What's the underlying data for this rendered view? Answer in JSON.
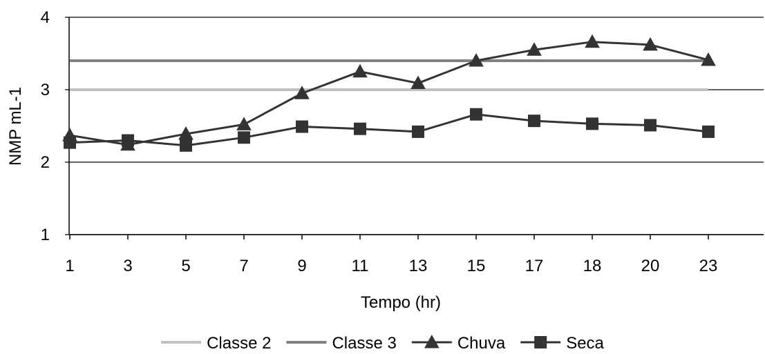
{
  "chart_data": {
    "type": "line",
    "title": "",
    "xlabel": "Tempo (hr)",
    "ylabel": "NMP mL-1",
    "ylim": [
      1,
      4
    ],
    "yticks": [
      "1",
      "2",
      "3",
      "4"
    ],
    "categories": [
      "1",
      "3",
      "5",
      "7",
      "9",
      "11",
      "13",
      "15",
      "17",
      "18",
      "20",
      "23"
    ],
    "grid": "horizontal",
    "legend_position": "bottom",
    "series": [
      {
        "name": "Classe 2",
        "color": "#c0c0c0",
        "marker": "none",
        "values": [
          3.0,
          3.0,
          3.0,
          3.0,
          3.0,
          3.0,
          3.0,
          3.0,
          3.0,
          3.0,
          3.0,
          3.0
        ]
      },
      {
        "name": "Classe 3",
        "color": "#808080",
        "marker": "none",
        "values": [
          3.4,
          3.4,
          3.4,
          3.4,
          3.4,
          3.4,
          3.4,
          3.4,
          3.4,
          3.4,
          3.4,
          3.4
        ]
      },
      {
        "name": "Chuva",
        "color": "#333333",
        "marker": "triangle",
        "values": [
          2.37,
          2.24,
          2.39,
          2.52,
          2.95,
          3.25,
          3.09,
          3.4,
          3.55,
          3.66,
          3.62,
          3.41
        ]
      },
      {
        "name": "Seca",
        "color": "#333333",
        "marker": "square",
        "values": [
          2.27,
          2.3,
          2.23,
          2.34,
          2.49,
          2.46,
          2.42,
          2.66,
          2.57,
          2.53,
          2.51,
          2.42
        ]
      }
    ]
  }
}
